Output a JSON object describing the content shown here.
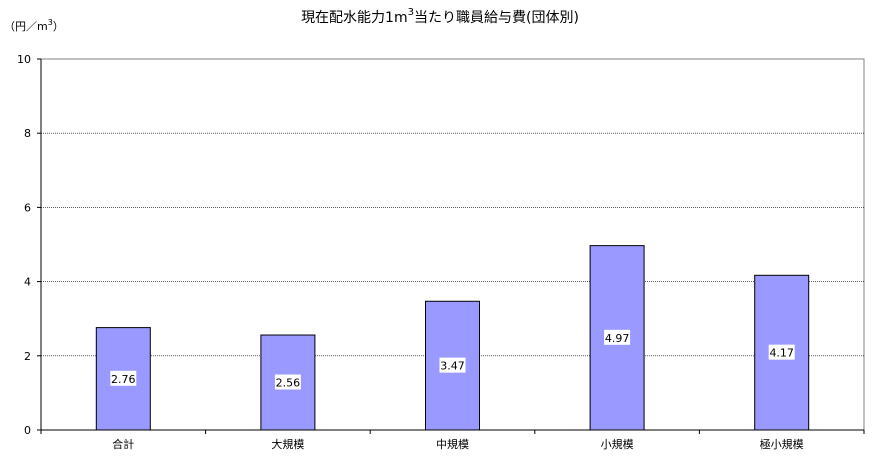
{
  "chart_data": {
    "type": "bar",
    "title": "現在配水能力1m",
    "title_superscript": "3",
    "title_suffix": "当たり職員給与費(団体別)",
    "ylabel_prefix": "（円／m",
    "ylabel_superscript": "3",
    "ylabel_suffix": "）",
    "xlabel": "",
    "ylim": [
      0,
      10
    ],
    "yticks": [
      0,
      2,
      4,
      6,
      8,
      10
    ],
    "grid": true,
    "legend": "none",
    "categories": [
      "合計",
      "大規模",
      "中規模",
      "小規模",
      "極小規模"
    ],
    "values": [
      2.76,
      2.56,
      3.47,
      4.97,
      4.17
    ],
    "data_labels": [
      "2.76",
      "2.56",
      "3.47",
      "4.97",
      "4.17"
    ],
    "colors": {
      "bar_fill": "#9999ff",
      "bar_stroke": "#000000",
      "grid": "#000000"
    }
  }
}
